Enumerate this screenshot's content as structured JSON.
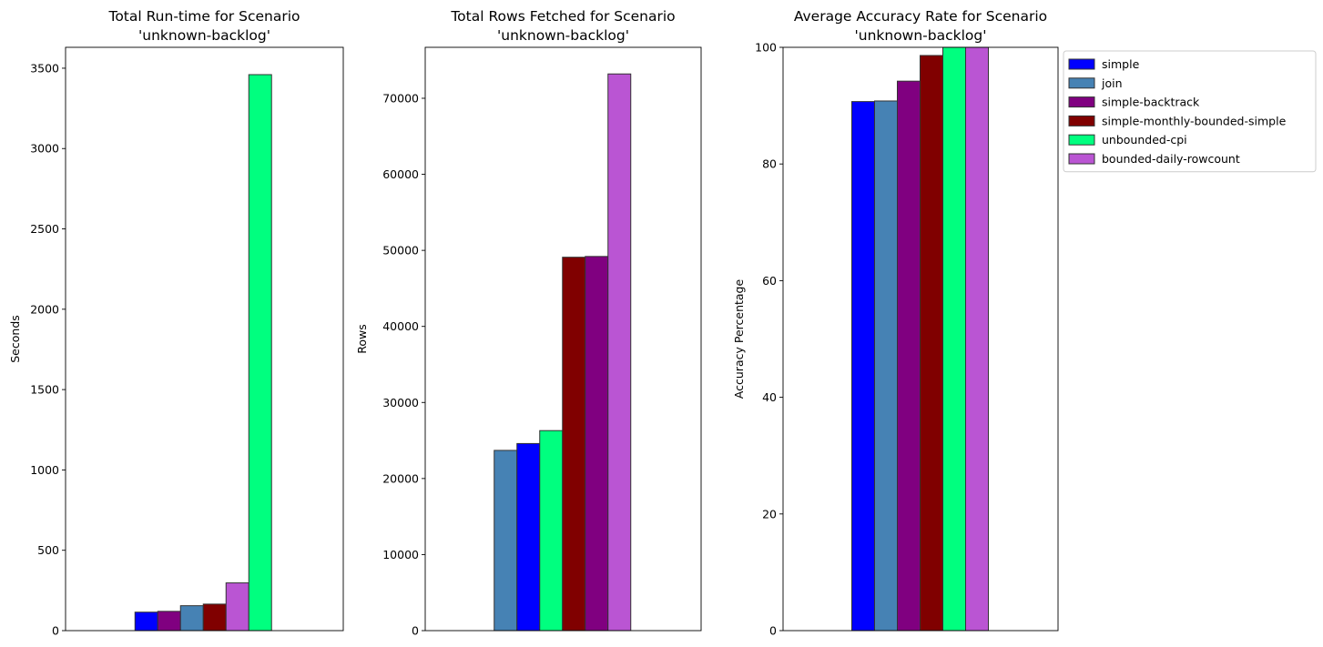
{
  "colors": {
    "simple": "#0000ff",
    "join": "#4682b4",
    "simple-backtrack": "#800080",
    "simple-monthly-bounded-simple": "#800000",
    "unbounded-cpi": "#00ff7f",
    "bounded-daily-rowcount": "#ba55d3"
  },
  "legend": {
    "entries": [
      "simple",
      "join",
      "simple-backtrack",
      "simple-monthly-bounded-simple",
      "unbounded-cpi",
      "bounded-daily-rowcount"
    ]
  },
  "chart_data": [
    {
      "type": "bar",
      "title_line1": "Total Run-time for Scenario",
      "title_line2": "'unknown-backlog'",
      "xlabel": "",
      "ylabel": "Seconds",
      "ylim": [
        0,
        3630
      ],
      "yticks": [
        0,
        500,
        1000,
        1500,
        2000,
        2500,
        3000,
        3500
      ],
      "bars": [
        {
          "series": "simple",
          "value": 115
        },
        {
          "series": "simple-backtrack",
          "value": 120
        },
        {
          "series": "join",
          "value": 155
        },
        {
          "series": "simple-monthly-bounded-simple",
          "value": 165
        },
        {
          "series": "bounded-daily-rowcount",
          "value": 297
        },
        {
          "series": "unbounded-cpi",
          "value": 3460
        }
      ]
    },
    {
      "type": "bar",
      "title_line1": "Total Rows Fetched for Scenario",
      "title_line2": "'unknown-backlog'",
      "xlabel": "",
      "ylabel": "Rows",
      "ylim": [
        0,
        76700
      ],
      "yticks": [
        0,
        10000,
        20000,
        30000,
        40000,
        50000,
        60000,
        70000
      ],
      "bars": [
        {
          "series": "join",
          "value": 23700
        },
        {
          "series": "simple",
          "value": 24600
        },
        {
          "series": "unbounded-cpi",
          "value": 26300
        },
        {
          "series": "simple-monthly-bounded-simple",
          "value": 49100
        },
        {
          "series": "simple-backtrack",
          "value": 49200
        },
        {
          "series": "bounded-daily-rowcount",
          "value": 73200
        }
      ]
    },
    {
      "type": "bar",
      "title_line1": "Average Accuracy Rate for Scenario",
      "title_line2": "'unknown-backlog'",
      "xlabel": "",
      "ylabel": "Accuracy Percentage",
      "ylim": [
        0,
        100
      ],
      "yticks": [
        0,
        20,
        40,
        60,
        80,
        100
      ],
      "bars": [
        {
          "series": "simple",
          "value": 90.7
        },
        {
          "series": "join",
          "value": 90.8
        },
        {
          "series": "simple-backtrack",
          "value": 94.2
        },
        {
          "series": "simple-monthly-bounded-simple",
          "value": 98.6
        },
        {
          "series": "unbounded-cpi",
          "value": 100
        },
        {
          "series": "bounded-daily-rowcount",
          "value": 100
        }
      ]
    }
  ]
}
